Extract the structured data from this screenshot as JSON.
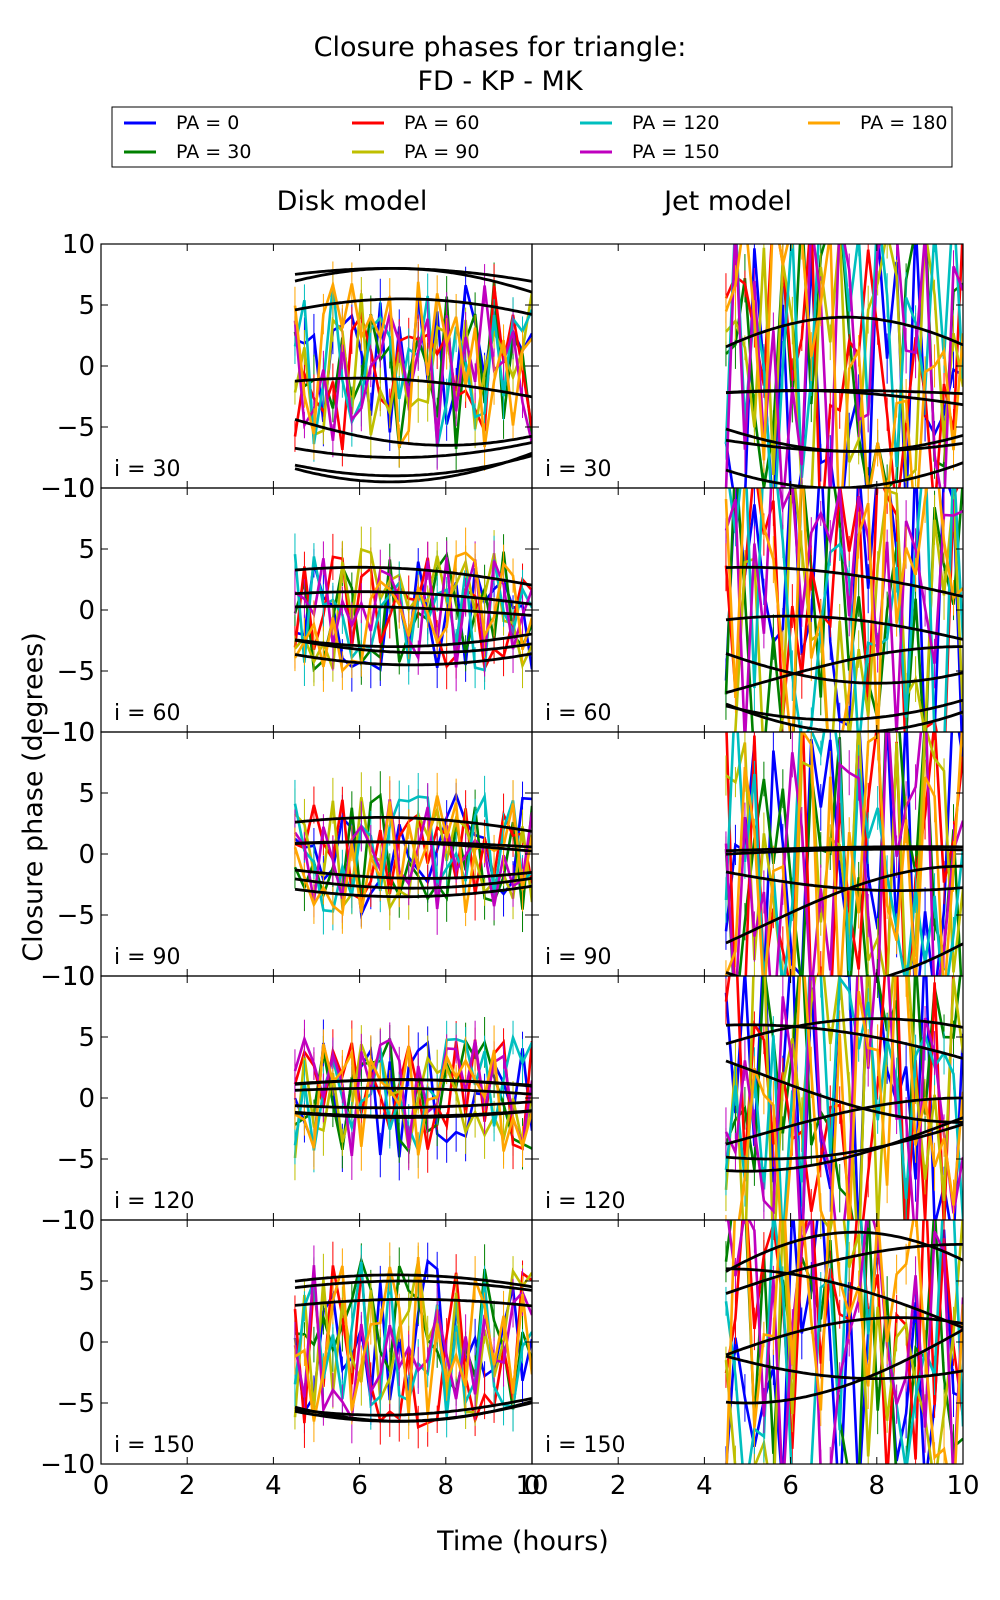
{
  "chart_data": {
    "type": "line",
    "title": "Closure phases for triangle:\nFD - KP - MK",
    "xlabel": "Time (hours)",
    "ylabel": "Closure phase (degrees)",
    "xlim": [
      0,
      10
    ],
    "ylim": [
      -10,
      10
    ],
    "x_ticks": [
      "0",
      "2",
      "4",
      "6",
      "8",
      "10"
    ],
    "y_ticks": [
      "10",
      "5",
      "0",
      "−5",
      "−10"
    ],
    "columns": [
      "Disk model",
      "Jet model"
    ],
    "rows": [
      "i = 30",
      "i = 60",
      "i = 90",
      "i = 120",
      "i = 150"
    ],
    "legend_position": "top",
    "series": [
      {
        "name": "PA = 0",
        "color": "#0000ff"
      },
      {
        "name": "PA = 30",
        "color": "#008000"
      },
      {
        "name": "PA = 60",
        "color": "#ff0000"
      },
      {
        "name": "PA = 90",
        "color": "#bfbf00"
      },
      {
        "name": "PA = 120",
        "color": "#00bfbf"
      },
      {
        "name": "PA = 150",
        "color": "#bf00bf"
      },
      {
        "name": "PA = 180",
        "color": "#ffa500"
      }
    ],
    "model_line_color": "#000000",
    "obs_x_range": [
      4.5,
      10
    ],
    "obs_n_points": 26,
    "panels": [
      {
        "column": "Disk model",
        "row": "i = 30",
        "model_curves": [
          {
            "a": 5.0,
            "b": 3.0,
            "c": 6.7,
            "d": 3.8
          },
          {
            "a": 3.0,
            "b": 5.0,
            "c": 6.8,
            "d": 3.5
          },
          {
            "a": 2.0,
            "b": 3.5,
            "c": 7.0,
            "d": 3.4
          },
          {
            "a": -3.0,
            "b": 2.0,
            "c": 6.0,
            "d": 3.0
          },
          {
            "a": -3.5,
            "b": -6.0,
            "c": 6.7,
            "d": 3.6
          },
          {
            "a": -5.0,
            "b": -4.0,
            "c": 6.8,
            "d": 3.4
          },
          {
            "a": -4.5,
            "b": -3.0,
            "c": 6.9,
            "d": 3.3
          },
          {
            "a": -3.0,
            "b": -3.5,
            "c": 8.0,
            "d": 3.0
          }
        ],
        "obs_scatter": 7.0
      },
      {
        "column": "Jet model",
        "row": "i = 30",
        "model_curves": [
          {
            "a": -2.0,
            "b": 6.0,
            "c": 7.3,
            "d": 3.0
          },
          {
            "a": -4.0,
            "b": -6.0,
            "c": 7.0,
            "d": 3.5
          },
          {
            "a": -3.0,
            "b": -4.0,
            "c": 7.5,
            "d": 3.0
          },
          {
            "a": -3.0,
            "b": 1.0,
            "c": 7.0,
            "d": 4.0
          },
          {
            "a": -5.0,
            "b": -2.0,
            "c": 7.5,
            "d": 3.0
          },
          {
            "a": -4.0,
            "b": 2.0,
            "c": 6.0,
            "d": 3.5
          }
        ],
        "obs_scatter": 14.0
      },
      {
        "column": "Disk model",
        "row": "i = 60",
        "model_curves": [
          {
            "a": 1.0,
            "b": 2.5,
            "c": 6.0,
            "d": 3.5
          },
          {
            "a": 0.0,
            "b": 1.5,
            "c": 6.0,
            "d": 3.2
          },
          {
            "a": -1.5,
            "b": -3.0,
            "c": 7.2,
            "d": 3.5
          },
          {
            "a": -1.0,
            "b": -2.0,
            "c": 6.8,
            "d": 3.0
          },
          {
            "a": -0.5,
            "b": 0.8,
            "c": 5.5,
            "d": 3.0
          },
          {
            "a": -1.0,
            "b": -2.5,
            "c": 7.5,
            "d": 3.2
          }
        ],
        "obs_scatter": 5.0
      },
      {
        "column": "Jet model",
        "row": "i = 60",
        "model_curves": [
          {
            "a": 0.0,
            "b": 3.5,
            "c": 5.0,
            "d": 4.0
          },
          {
            "a": -3.0,
            "b": 2.5,
            "c": 6.0,
            "d": 3.0
          },
          {
            "a": -3.0,
            "b": -6.0,
            "c": 7.0,
            "d": 4.0
          },
          {
            "a": -2.0,
            "b": -4.0,
            "c": 8.0,
            "d": 3.0
          },
          {
            "a": -5.0,
            "b": -5.0,
            "c": 7.5,
            "d": 3.0
          },
          {
            "a": -6.0,
            "b": 3.0,
            "c": 10.0,
            "d": 3.0
          }
        ],
        "obs_scatter": 14.0
      },
      {
        "column": "Disk model",
        "row": "i = 90",
        "model_curves": [
          {
            "a": 0.5,
            "b": 2.5,
            "c": 6.5,
            "d": 3.5
          },
          {
            "a": 0.3,
            "b": 0.7,
            "c": 6.5,
            "d": 3.0
          },
          {
            "a": -1.0,
            "b": -2.5,
            "c": 7.0,
            "d": 3.5
          },
          {
            "a": -0.8,
            "b": -2.0,
            "c": 7.2,
            "d": 3.0
          },
          {
            "a": 0.0,
            "b": 1.0,
            "c": 6.0,
            "d": 3.0
          },
          {
            "a": -0.5,
            "b": -1.5,
            "c": 7.5,
            "d": 3.0
          }
        ],
        "obs_scatter": 5.0
      },
      {
        "column": "Jet model",
        "row": "i = 90",
        "model_curves": [
          {
            "a": 0.0,
            "b": 0.6,
            "c": 9.0,
            "d": 4.0
          },
          {
            "a": -0.5,
            "b": 0.9,
            "c": 8.5,
            "d": 4.0
          },
          {
            "a": -1.0,
            "b": -2.0,
            "c": 8.5,
            "d": 3.0
          },
          {
            "a": -5.0,
            "b": -6.0,
            "c": 6.5,
            "d": 3.0
          },
          {
            "a": -6.0,
            "b": 5.0,
            "c": 10.0,
            "d": 3.0
          }
        ],
        "obs_scatter": 14.0
      },
      {
        "column": "Disk model",
        "row": "i = 120",
        "model_curves": [
          {
            "a": 0.5,
            "b": 1.0,
            "c": 7.0,
            "d": 3.0
          },
          {
            "a": 0.2,
            "b": 1.3,
            "c": 7.0,
            "d": 3.2
          },
          {
            "a": -0.5,
            "b": -1.0,
            "c": 7.0,
            "d": 3.0
          },
          {
            "a": -0.3,
            "b": -1.3,
            "c": 7.0,
            "d": 3.2
          },
          {
            "a": 0.0,
            "b": 0.8,
            "c": 6.5,
            "d": 3.0
          },
          {
            "a": 0.0,
            "b": -0.8,
            "c": 6.5,
            "d": 3.0
          }
        ],
        "obs_scatter": 5.0
      },
      {
        "column": "Jet model",
        "row": "i = 120",
        "model_curves": [
          {
            "a": 2.0,
            "b": 4.5,
            "c": 8.0,
            "d": 3.5
          },
          {
            "a": 0.0,
            "b": 6.0,
            "c": 5.0,
            "d": 5.0
          },
          {
            "a": 2.0,
            "b": -4.0,
            "c": 10.0,
            "d": 3.0
          },
          {
            "a": -2.0,
            "b": -4.0,
            "c": 5.0,
            "d": 3.0
          },
          {
            "a": -3.0,
            "b": 3.0,
            "c": 10.0,
            "d": 3.0
          },
          {
            "a": 0.0,
            "b": -5.0,
            "c": 5.5,
            "d": 4.0
          }
        ],
        "obs_scatter": 14.0
      },
      {
        "column": "Disk model",
        "row": "i = 150",
        "model_curves": [
          {
            "a": 3.0,
            "b": 2.5,
            "c": 6.8,
            "d": 3.5
          },
          {
            "a": 3.0,
            "b": 2.0,
            "c": 7.0,
            "d": 3.3
          },
          {
            "a": 2.0,
            "b": 1.5,
            "c": 7.2,
            "d": 3.2
          },
          {
            "a": -3.0,
            "b": -3.0,
            "c": 6.5,
            "d": 3.5
          },
          {
            "a": -3.0,
            "b": -3.5,
            "c": 6.8,
            "d": 3.3
          },
          {
            "a": -2.5,
            "b": -4.0,
            "c": 7.0,
            "d": 3.2
          }
        ],
        "obs_scatter": 7.0
      },
      {
        "column": "Jet model",
        "row": "i = 150",
        "model_curves": [
          {
            "a": 2.0,
            "b": 7.0,
            "c": 7.5,
            "d": 3.0
          },
          {
            "a": 1.0,
            "b": -4.0,
            "c": 8.0,
            "d": 3.5
          },
          {
            "a": -2.0,
            "b": 4.0,
            "c": 8.5,
            "d": 3.0
          },
          {
            "a": 2.0,
            "b": -7.0,
            "c": 5.0,
            "d": 3.5
          },
          {
            "a": 0.0,
            "b": 6.0,
            "c": 4.5,
            "d": 4.0
          },
          {
            "a": 3.0,
            "b": 5.0,
            "c": 10.0,
            "d": 4.0
          }
        ],
        "obs_scatter": 14.0
      }
    ]
  }
}
